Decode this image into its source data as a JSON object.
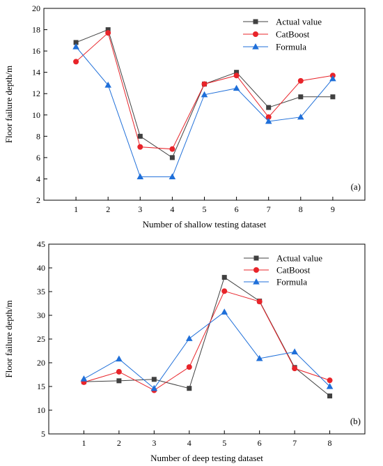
{
  "chart_data": [
    {
      "type": "line",
      "panel_label": "(a)",
      "xlabel": "Number of shallow testing dataset",
      "ylabel": "Floor failure depth/m",
      "categories": [
        "1",
        "2",
        "3",
        "4",
        "5",
        "6",
        "7",
        "8",
        "9"
      ],
      "x": [
        1,
        2,
        3,
        4,
        5,
        6,
        7,
        8,
        9
      ],
      "xlim": [
        0,
        10
      ],
      "ylim": [
        2,
        20
      ],
      "yticks": [
        2,
        4,
        6,
        8,
        10,
        12,
        14,
        16,
        18,
        20
      ],
      "legend_position": "top-right",
      "grid": false,
      "series": [
        {
          "name": "Actual value",
          "marker": "square",
          "color": "#404040",
          "values": [
            16.8,
            18.0,
            8.0,
            6.0,
            12.9,
            14.0,
            10.7,
            11.7,
            11.7
          ]
        },
        {
          "name": "CatBoost",
          "marker": "circle",
          "color": "#e8242a",
          "values": [
            15.0,
            17.7,
            7.0,
            6.8,
            12.9,
            13.7,
            9.8,
            13.2,
            13.7
          ]
        },
        {
          "name": "Formula",
          "marker": "triangle",
          "color": "#1f6fd9",
          "values": [
            16.4,
            12.8,
            4.2,
            4.2,
            11.9,
            12.5,
            9.4,
            9.8,
            13.4
          ]
        }
      ]
    },
    {
      "type": "line",
      "panel_label": "(b)",
      "xlabel": "Number of deep testing dataset",
      "ylabel": "Floor failure depth/m",
      "categories": [
        "1",
        "2",
        "3",
        "4",
        "5",
        "6",
        "7",
        "8"
      ],
      "x": [
        1,
        2,
        3,
        4,
        5,
        6,
        7,
        8
      ],
      "xlim": [
        0,
        9
      ],
      "ylim": [
        5,
        45
      ],
      "yticks": [
        5,
        10,
        15,
        20,
        25,
        30,
        35,
        40,
        45
      ],
      "legend_position": "top-right",
      "grid": false,
      "series": [
        {
          "name": "Actual value",
          "marker": "square",
          "color": "#404040",
          "values": [
            16.0,
            16.2,
            16.5,
            14.6,
            38.0,
            33.0,
            19.0,
            13.0
          ]
        },
        {
          "name": "CatBoost",
          "marker": "circle",
          "color": "#e8242a",
          "values": [
            15.9,
            18.1,
            14.2,
            19.1,
            35.1,
            32.9,
            18.8,
            16.3
          ]
        },
        {
          "name": "Formula",
          "marker": "triangle",
          "color": "#1f6fd9",
          "values": [
            16.6,
            20.8,
            14.6,
            25.1,
            30.7,
            20.9,
            22.3,
            15.0
          ]
        }
      ]
    }
  ]
}
